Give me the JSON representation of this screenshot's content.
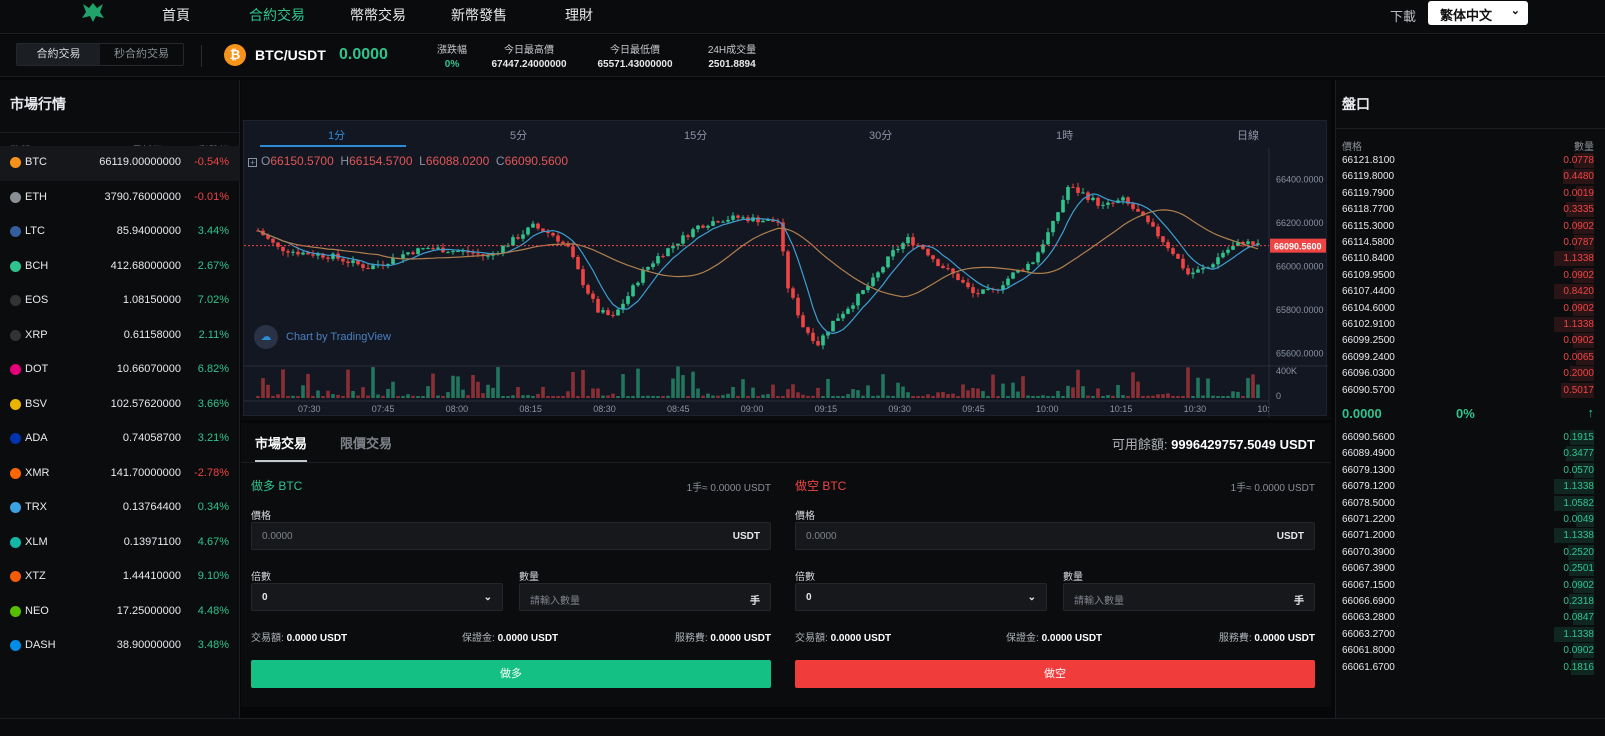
{
  "nav": {
    "items": [
      "首頁",
      "合約交易",
      "幣幣交易",
      "新幣發售",
      "理財"
    ],
    "active": "合約交易",
    "download": "下載",
    "language": "繁体中文"
  },
  "ticker": {
    "modes": [
      "合約交易",
      "秒合約交易"
    ],
    "pair": "BTC/USDT",
    "price": "0.0000",
    "stats": [
      {
        "label": "漲跌幅",
        "value": "0%"
      },
      {
        "label": "今日最高價",
        "value": "67447.24000000"
      },
      {
        "label": "今日最低價",
        "value": "65571.43000000"
      },
      {
        "label": "24H成交量",
        "value": "2501.8894"
      }
    ]
  },
  "market": {
    "title": "市場行情",
    "headers": [
      "幣種",
      "最新價",
      "漲跌幅"
    ],
    "rows": [
      {
        "symbol": "BTC",
        "price": "66119.00000000",
        "change": "-0.54%",
        "dir": "down",
        "color": "#f7931a"
      },
      {
        "symbol": "ETH",
        "price": "3790.76000000",
        "change": "-0.01%",
        "dir": "down",
        "color": "#8a8f96"
      },
      {
        "symbol": "LTC",
        "price": "85.94000000",
        "change": "3.44%",
        "dir": "up",
        "color": "#345d9d"
      },
      {
        "symbol": "BCH",
        "price": "412.68000000",
        "change": "2.67%",
        "dir": "up",
        "color": "#2fc48e"
      },
      {
        "symbol": "EOS",
        "price": "1.08150000",
        "change": "7.02%",
        "dir": "up",
        "color": "#333"
      },
      {
        "symbol": "XRP",
        "price": "0.61158000",
        "change": "2.11%",
        "dir": "up",
        "color": "#333"
      },
      {
        "symbol": "DOT",
        "price": "10.66070000",
        "change": "6.82%",
        "dir": "up",
        "color": "#e6007a"
      },
      {
        "symbol": "BSV",
        "price": "102.57620000",
        "change": "3.66%",
        "dir": "up",
        "color": "#eab300"
      },
      {
        "symbol": "ADA",
        "price": "0.74058700",
        "change": "3.21%",
        "dir": "up",
        "color": "#0033ad"
      },
      {
        "symbol": "XMR",
        "price": "141.70000000",
        "change": "-2.78%",
        "dir": "down",
        "color": "#ff6600"
      },
      {
        "symbol": "TRX",
        "price": "0.13764400",
        "change": "0.34%",
        "dir": "up",
        "color": "#3aa3e3"
      },
      {
        "symbol": "XLM",
        "price": "0.13971100",
        "change": "4.67%",
        "dir": "up",
        "color": "#14b6a6"
      },
      {
        "symbol": "XTZ",
        "price": "1.44410000",
        "change": "9.10%",
        "dir": "up",
        "color": "#f25c05"
      },
      {
        "symbol": "NEO",
        "price": "17.25000000",
        "change": "4.48%",
        "dir": "up",
        "color": "#58bf00"
      },
      {
        "symbol": "DASH",
        "price": "38.90000000",
        "change": "3.48%",
        "dir": "up",
        "color": "#008ce7"
      }
    ]
  },
  "chart": {
    "timeframes": [
      "1分",
      "5分",
      "15分",
      "30分",
      "1時",
      "日線"
    ],
    "active_tf": "1分",
    "ohlc": {
      "O": "66150.5700",
      "H": "66154.5700",
      "L": "66088.0200",
      "C": "66090.5600"
    },
    "badge": "Chart by TradingView",
    "price_labels": [
      "66400.0000",
      "66200.0000",
      "66000.0000",
      "65800.0000",
      "65600.0000"
    ],
    "current_label": "66090.5600",
    "vol_labels": [
      "400K",
      "0"
    ],
    "time_labels": [
      "07:30",
      "07:45",
      "08:00",
      "08:15",
      "08:30",
      "08:45",
      "09:00",
      "09:15",
      "09:30",
      "09:45",
      "10:00",
      "10:15",
      "10:30",
      "10:"
    ],
    "price_range": [
      65560,
      66480
    ],
    "current": 66090.56
  },
  "trade": {
    "tabs": [
      "市場交易",
      "限價交易"
    ],
    "available_label": "可用餘額:",
    "available_value": "9996429757.5049 USDT",
    "buy": {
      "title": "做多 BTC",
      "per_lot": "1手≈ 0.0000 USDT",
      "price_label": "價格",
      "price_value": "0.0000",
      "price_unit": "USDT",
      "leverage_label": "倍數",
      "leverage_value": "0",
      "qty_label": "數量",
      "qty_placeholder": "請輸入數量",
      "qty_unit": "手",
      "fee_label": "交易額:",
      "fee_value": "0.0000 USDT",
      "margin_label": "保證金:",
      "margin_value": "0.0000 USDT",
      "service_label": "服務費:",
      "service_value": "0.0000 USDT",
      "button": "做多"
    },
    "sell": {
      "title": "做空 BTC",
      "per_lot": "1手≈ 0.0000 USDT",
      "price_label": "價格",
      "price_value": "0.0000",
      "price_unit": "USDT",
      "leverage_label": "倍數",
      "leverage_value": "0",
      "qty_label": "數量",
      "qty_placeholder": "請輸入數量",
      "qty_unit": "手",
      "fee_label": "交易額:",
      "fee_value": "0.0000 USDT",
      "margin_label": "保證金:",
      "margin_value": "0.0000 USDT",
      "service_label": "服務費:",
      "service_value": "0.0000 USDT",
      "button": "做空"
    }
  },
  "orderbook": {
    "title": "盤口",
    "headers": [
      "價格",
      "數量"
    ],
    "asks": [
      [
        "66121.8100",
        "0.0778"
      ],
      [
        "66119.8000",
        "0.4480"
      ],
      [
        "66119.7900",
        "0.0019"
      ],
      [
        "66118.7700",
        "0.3335"
      ],
      [
        "66115.3000",
        "0.0902"
      ],
      [
        "66114.5800",
        "0.0787"
      ],
      [
        "66110.8400",
        "1.1338"
      ],
      [
        "66109.9500",
        "0.0902"
      ],
      [
        "66107.4400",
        "0.8420"
      ],
      [
        "66104.6000",
        "0.0902"
      ],
      [
        "66102.9100",
        "1.1338"
      ],
      [
        "66099.2500",
        "0.0902"
      ],
      [
        "66099.2400",
        "0.0065"
      ],
      [
        "66096.0300",
        "0.2000"
      ],
      [
        "66090.5700",
        "0.5017"
      ]
    ],
    "mid_price": "0.0000",
    "mid_change": "0%",
    "mid_arrow": "↑",
    "bids": [
      [
        "66090.5600",
        "0.1915"
      ],
      [
        "66089.4900",
        "0.3477"
      ],
      [
        "66079.1300",
        "0.0570"
      ],
      [
        "66079.1200",
        "1.1338"
      ],
      [
        "66078.5000",
        "1.0582"
      ],
      [
        "66071.2200",
        "0.0049"
      ],
      [
        "66071.2000",
        "1.1338"
      ],
      [
        "66070.3900",
        "0.2520"
      ],
      [
        "66067.3900",
        "0.2501"
      ],
      [
        "66067.1500",
        "0.0902"
      ],
      [
        "66066.6900",
        "0.2318"
      ],
      [
        "66063.2800",
        "0.0847"
      ],
      [
        "66063.2700",
        "1.1338"
      ],
      [
        "66061.8000",
        "0.0902"
      ],
      [
        "66061.6700",
        "0.1816"
      ]
    ]
  },
  "colors": {
    "up": "#2fc48e",
    "down": "#ef4444",
    "accent": "#2e8bd8"
  }
}
